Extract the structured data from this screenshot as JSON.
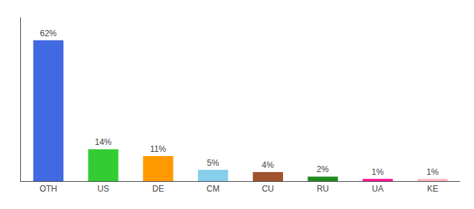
{
  "chart_data": {
    "type": "bar",
    "categories": [
      "OTH",
      "US",
      "DE",
      "CM",
      "CU",
      "RU",
      "UA",
      "KE"
    ],
    "values": [
      62,
      14,
      11,
      5,
      4,
      2,
      1,
      1
    ],
    "value_labels": [
      "62%",
      "14%",
      "11%",
      "5%",
      "4%",
      "2%",
      "1%",
      "1%"
    ],
    "colors": [
      "#4169E1",
      "#33CC33",
      "#FF9900",
      "#87CEEB",
      "#A0522D",
      "#228B22",
      "#FF1493",
      "#FFB6C1"
    ],
    "ylim": [
      0,
      72
    ],
    "grid": false,
    "data_labels": true,
    "tick_labels": "x"
  }
}
